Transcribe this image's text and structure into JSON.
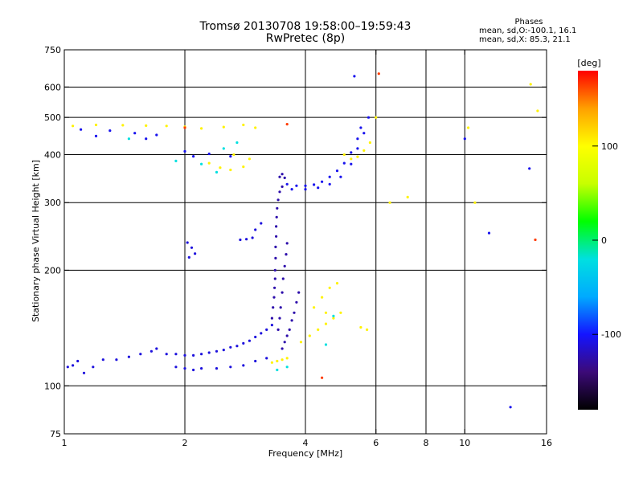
{
  "chart_data": {
    "type": "scatter",
    "title": "Tromsø 20130708 19:58:00–19:59:43",
    "subtitle": "RwPretec (8p)",
    "phase_info": {
      "header": "Phases",
      "line_o": "mean, sd,O:-100.1, 16.1",
      "line_x": "mean, sd,X:  85.3, 21.1"
    },
    "xlabel": "Frequency [MHz]",
    "ylabel": "Stationary phase Virtual Height [km]",
    "x_scale": "log",
    "y_scale": "log",
    "xlim": [
      1,
      16
    ],
    "ylim": [
      75,
      750
    ],
    "x_ticks": [
      1,
      2,
      4,
      6,
      8,
      10,
      16
    ],
    "x_tick_labels": [
      "1",
      "2",
      "4",
      "6",
      "8",
      "10",
      "16"
    ],
    "x_grid": [
      2,
      4,
      6,
      8,
      10
    ],
    "y_ticks": [
      75,
      100,
      200,
      300,
      400,
      500,
      600,
      750
    ],
    "y_tick_labels": [
      "75",
      "100",
      "200",
      "300",
      "400",
      "500",
      "600",
      "750"
    ],
    "y_grid": [
      100,
      200,
      300,
      400,
      500,
      600
    ],
    "grid": true,
    "colorbar": {
      "label": "[deg]",
      "range": [
        -180,
        180
      ],
      "ticks": [
        100,
        0,
        -100
      ],
      "tick_labels": [
        "100",
        "0",
        "-100"
      ],
      "colors": [
        "#000000",
        "#3c0a78",
        "#1414ff",
        "#00aaff",
        "#00e0e0",
        "#00ff00",
        "#c8ff00",
        "#ffff00",
        "#ffa000",
        "#ff0000"
      ]
    },
    "series": [
      {
        "phase_deg": -110,
        "points": [
          [
            1.02,
            112
          ],
          [
            1.05,
            113
          ],
          [
            1.08,
            116
          ],
          [
            1.12,
            108
          ],
          [
            1.18,
            112
          ],
          [
            1.25,
            117
          ],
          [
            1.35,
            117
          ],
          [
            1.45,
            119
          ],
          [
            1.55,
            121
          ],
          [
            1.65,
            123
          ],
          [
            1.7,
            125
          ],
          [
            1.8,
            121
          ],
          [
            1.9,
            121
          ],
          [
            2.0,
            120
          ],
          [
            2.1,
            120
          ],
          [
            2.2,
            121
          ],
          [
            2.3,
            122
          ],
          [
            2.4,
            123
          ],
          [
            2.5,
            124
          ],
          [
            2.6,
            126
          ],
          [
            2.7,
            127
          ],
          [
            2.8,
            129
          ],
          [
            2.9,
            131
          ],
          [
            3.0,
            134
          ],
          [
            3.1,
            137
          ],
          [
            3.2,
            140
          ],
          [
            3.3,
            144
          ],
          [
            1.9,
            112
          ],
          [
            2.0,
            111
          ],
          [
            2.1,
            110
          ],
          [
            2.2,
            111
          ],
          [
            2.4,
            111
          ],
          [
            2.6,
            112
          ],
          [
            2.8,
            113
          ],
          [
            3.0,
            116
          ],
          [
            3.2,
            118
          ],
          [
            2.03,
            236
          ],
          [
            2.08,
            229
          ],
          [
            2.12,
            221
          ],
          [
            2.05,
            216
          ],
          [
            2.75,
            240
          ],
          [
            2.85,
            241
          ],
          [
            2.95,
            243
          ],
          [
            3.0,
            255
          ],
          [
            3.1,
            265
          ]
        ]
      },
      {
        "phase_deg": -125,
        "points": [
          [
            3.3,
            150
          ],
          [
            3.32,
            160
          ],
          [
            3.34,
            170
          ],
          [
            3.35,
            180
          ],
          [
            3.36,
            190
          ],
          [
            3.36,
            200
          ],
          [
            3.37,
            215
          ],
          [
            3.37,
            230
          ],
          [
            3.38,
            245
          ],
          [
            3.38,
            260
          ],
          [
            3.39,
            275
          ],
          [
            3.4,
            290
          ],
          [
            3.42,
            305
          ],
          [
            3.45,
            320
          ],
          [
            3.5,
            330
          ],
          [
            3.42,
            140
          ],
          [
            3.45,
            150
          ],
          [
            3.47,
            160
          ],
          [
            3.5,
            175
          ],
          [
            3.52,
            190
          ],
          [
            3.55,
            205
          ],
          [
            3.58,
            220
          ],
          [
            3.6,
            235
          ],
          [
            3.5,
            125
          ],
          [
            3.55,
            130
          ],
          [
            3.6,
            135
          ],
          [
            3.65,
            140
          ],
          [
            3.7,
            148
          ],
          [
            3.75,
            155
          ],
          [
            3.8,
            165
          ],
          [
            3.85,
            175
          ],
          [
            3.45,
            350
          ],
          [
            3.5,
            356
          ],
          [
            3.55,
            348
          ]
        ]
      },
      {
        "phase_deg": -105,
        "points": [
          [
            3.6,
            335
          ],
          [
            3.8,
            332
          ],
          [
            4.0,
            332
          ],
          [
            4.2,
            334
          ],
          [
            4.4,
            340
          ],
          [
            4.6,
            350
          ],
          [
            4.8,
            363
          ],
          [
            5.0,
            380
          ],
          [
            5.2,
            405
          ],
          [
            5.4,
            440
          ],
          [
            5.5,
            470
          ],
          [
            3.7,
            325
          ],
          [
            4.0,
            325
          ],
          [
            4.3,
            328
          ],
          [
            4.6,
            335
          ],
          [
            4.9,
            350
          ],
          [
            5.2,
            378
          ],
          [
            5.4,
            415
          ],
          [
            5.6,
            455
          ],
          [
            5.75,
            500
          ],
          [
            1.1,
            465
          ],
          [
            1.3,
            462
          ],
          [
            1.5,
            455
          ],
          [
            1.7,
            450
          ],
          [
            1.2,
            447
          ],
          [
            1.6,
            440
          ],
          [
            2.0,
            408
          ],
          [
            2.1,
            396
          ],
          [
            2.3,
            402
          ],
          [
            2.6,
            396
          ],
          [
            5.3,
            640
          ],
          [
            10.0,
            440
          ],
          [
            11.5,
            250
          ],
          [
            14.5,
            368
          ],
          [
            13.0,
            88
          ]
        ]
      },
      {
        "phase_deg": 105,
        "points": [
          [
            1.05,
            475
          ],
          [
            1.2,
            478
          ],
          [
            1.4,
            477
          ],
          [
            1.6,
            476
          ],
          [
            1.8,
            475
          ],
          [
            2.0,
            473
          ],
          [
            2.2,
            468
          ],
          [
            2.5,
            472
          ],
          [
            2.8,
            478
          ],
          [
            3.0,
            470
          ],
          [
            2.3,
            380
          ],
          [
            2.45,
            370
          ],
          [
            2.6,
            365
          ],
          [
            2.8,
            372
          ],
          [
            2.9,
            390
          ],
          [
            2.65,
            400
          ],
          [
            3.3,
            115
          ],
          [
            3.4,
            116
          ],
          [
            3.5,
            117
          ],
          [
            3.6,
            118
          ],
          [
            3.9,
            130
          ],
          [
            4.1,
            135
          ],
          [
            4.3,
            140
          ],
          [
            4.5,
            145
          ],
          [
            4.7,
            150
          ],
          [
            4.9,
            155
          ],
          [
            4.2,
            160
          ],
          [
            4.4,
            170
          ],
          [
            4.6,
            180
          ],
          [
            4.8,
            185
          ],
          [
            4.5,
            155
          ],
          [
            5.5,
            142
          ],
          [
            5.7,
            140
          ],
          [
            5.0,
            400
          ],
          [
            5.2,
            390
          ],
          [
            5.4,
            395
          ],
          [
            5.6,
            410
          ],
          [
            5.8,
            430
          ],
          [
            6.0,
            500
          ],
          [
            6.5,
            300
          ],
          [
            7.2,
            310
          ],
          [
            10.2,
            470
          ],
          [
            10.6,
            300
          ],
          [
            14.6,
            610
          ],
          [
            15.2,
            520
          ]
        ]
      },
      {
        "phase_deg": -20,
        "points": [
          [
            1.45,
            440
          ],
          [
            1.9,
            385
          ],
          [
            2.2,
            378
          ],
          [
            2.5,
            415
          ],
          [
            2.7,
            430
          ],
          [
            2.4,
            360
          ],
          [
            3.4,
            110
          ],
          [
            3.6,
            112
          ],
          [
            4.5,
            128
          ],
          [
            4.7,
            152
          ]
        ]
      },
      {
        "phase_deg": 165,
        "points": [
          [
            2.0,
            470
          ],
          [
            3.6,
            480
          ],
          [
            4.4,
            105
          ],
          [
            6.1,
            650
          ],
          [
            15.0,
            240
          ]
        ]
      }
    ]
  }
}
